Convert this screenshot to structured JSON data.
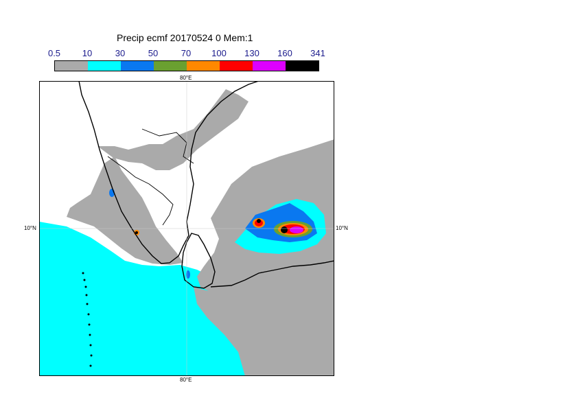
{
  "title": "Precip ecmf 20170524 0 Mem:1",
  "legend": {
    "ticks": [
      "0.5",
      "10",
      "30",
      "50",
      "70",
      "100",
      "130",
      "160",
      "341"
    ],
    "colors": [
      "#aaaaaa",
      "#00ffff",
      "#0a78f0",
      "#6aa030",
      "#ff8800",
      "#ff0000",
      "#dd00ff",
      "#000000"
    ]
  },
  "map": {
    "lon_label_top": "80°E",
    "lon_label_bottom": "80°E",
    "lat_label_left": "10°N",
    "lat_label_right": "10°N",
    "background_color": "#ffffff",
    "coastline_color": "#000000"
  }
}
